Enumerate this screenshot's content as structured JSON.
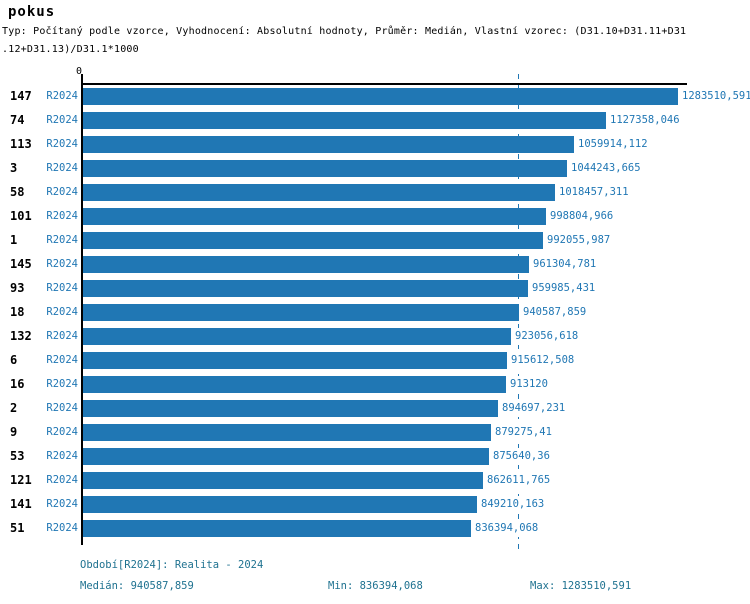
{
  "title": "pokus",
  "subtitle_line1": "Typ: Počítaný podle vzorce, Vyhodnocení: Absolutní hodnoty, Průměr: Medián, Vlastní vzorec: (D31.10+D31.11+D31",
  "subtitle_line2": ".12+D31.13)/D31.1*1000",
  "axis": {
    "zero_label": "0"
  },
  "colors": {
    "bar": "#2077b4",
    "blue_text": "#2077b4",
    "footer_text": "#1f7290",
    "axis": "#000000"
  },
  "chart_data": {
    "type": "bar",
    "orientation": "horizontal",
    "title": "pokus",
    "series_label": "R2024",
    "categories": [
      "147",
      "74",
      "113",
      "3",
      "58",
      "101",
      "1",
      "145",
      "93",
      "18",
      "132",
      "6",
      "16",
      "2",
      "9",
      "53",
      "121",
      "141",
      "51"
    ],
    "values": [
      1283510.591,
      1127358.046,
      1059914.112,
      1044243.665,
      1018457.311,
      998804.966,
      992055.987,
      961304.781,
      959985.431,
      940587.859,
      923056.618,
      915612.508,
      913120,
      894697.231,
      879275.41,
      875640.36,
      862611.765,
      849210.163,
      836394.068
    ],
    "value_labels": [
      "1283510,591",
      "1127358,046",
      "1059914,112",
      "1044243,665",
      "1018457,311",
      "998804,966",
      "992055,987",
      "961304,781",
      "959985,431",
      "940587,859",
      "923056,618",
      "915612,508",
      "913120",
      "894697,231",
      "879275,41",
      "875640,36",
      "862611,765",
      "849210,163",
      "836394,068"
    ],
    "xlim": [
      0,
      1298000
    ],
    "median": 940587.859,
    "min": 836394.068,
    "max": 1283510.591,
    "grid": "median-dashed-line",
    "legend_position": "none"
  },
  "footer": {
    "period": "Období[R2024]: Realita - 2024",
    "median_label": "Medián: 940587,859",
    "min_label": "Min: 836394,068",
    "max_label": "Max: 1283510,591"
  }
}
